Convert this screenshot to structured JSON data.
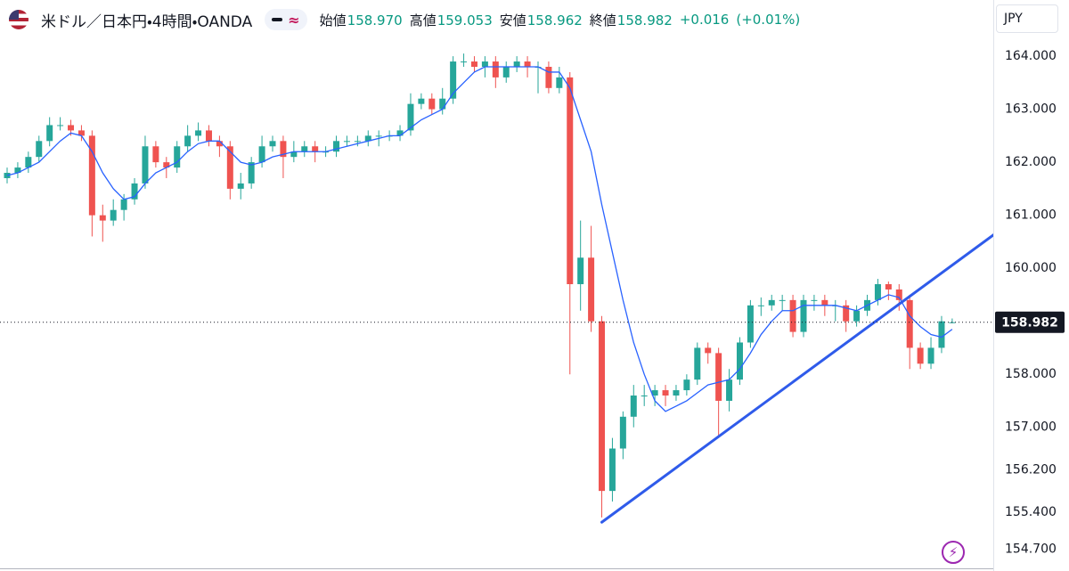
{
  "chart_data": {
    "type": "candlestick",
    "title": "米ドル／日本円・4時間・OANDA",
    "currency": "JPY",
    "ohlc_legend": [
      {
        "label": "始値",
        "value": "158.970"
      },
      {
        "label": "高値",
        "value": "159.053"
      },
      {
        "label": "安値",
        "value": "158.962"
      },
      {
        "label": "終値",
        "value": "158.982"
      }
    ],
    "change": "+0.016",
    "change_percent": "(+0.01%)",
    "last_price": {
      "value": 158.982,
      "label": "158.982"
    },
    "up_color": "#26a69a",
    "down_color": "#ef5350",
    "open": [
      161.7,
      161.8,
      161.9,
      162.1,
      162.4,
      162.7,
      162.7,
      162.6,
      162.5,
      161.0,
      160.9,
      161.1,
      161.3,
      161.6,
      162.3,
      162.0,
      161.9,
      162.3,
      162.5,
      162.6,
      162.4,
      162.3,
      161.5,
      161.6,
      162.0,
      162.3,
      162.4,
      162.1,
      162.2,
      162.3,
      162.2,
      162.2,
      162.4,
      162.4,
      162.4,
      162.5,
      162.5,
      162.5,
      162.6,
      163.1,
      163.2,
      163.0,
      163.2,
      163.9,
      163.9,
      163.8,
      163.9,
      163.6,
      163.8,
      163.9,
      163.8,
      163.8,
      163.4,
      163.6,
      159.7,
      160.2,
      159.0,
      155.8,
      156.6,
      157.2,
      157.6,
      157.6,
      157.7,
      157.6,
      157.7,
      157.9,
      158.5,
      158.4,
      157.5,
      157.9,
      158.6,
      159.3,
      159.3,
      159.4,
      159.4,
      158.8,
      159.4,
      159.4,
      159.3,
      159.3,
      159.0,
      159.2,
      159.4,
      159.7,
      159.6,
      159.4,
      158.5,
      158.2,
      158.5,
      158.97
    ],
    "high": [
      161.9,
      162.0,
      162.2,
      162.5,
      162.85,
      162.85,
      162.8,
      162.7,
      162.6,
      161.2,
      161.3,
      161.4,
      161.7,
      162.5,
      162.4,
      162.1,
      162.4,
      162.7,
      162.75,
      162.7,
      162.5,
      162.4,
      161.8,
      162.1,
      162.5,
      162.5,
      162.5,
      162.4,
      162.4,
      162.4,
      162.3,
      162.5,
      162.5,
      162.5,
      162.6,
      162.6,
      162.6,
      162.7,
      163.3,
      163.3,
      163.3,
      163.4,
      164.0,
      164.05,
      164.0,
      164.0,
      164.0,
      163.9,
      164.0,
      164.0,
      163.9,
      163.9,
      163.8,
      163.7,
      160.9,
      160.8,
      159.1,
      156.8,
      157.3,
      157.8,
      157.8,
      157.8,
      157.8,
      157.8,
      158.0,
      158.6,
      158.6,
      158.5,
      158.1,
      158.7,
      159.4,
      159.45,
      159.5,
      159.5,
      159.5,
      159.5,
      159.5,
      159.5,
      159.4,
      159.4,
      159.3,
      159.5,
      159.8,
      159.75,
      159.7,
      159.5,
      158.6,
      158.7,
      159.1,
      159.053
    ],
    "low": [
      161.6,
      161.7,
      161.8,
      162.0,
      162.3,
      162.6,
      162.5,
      162.4,
      160.6,
      160.5,
      160.8,
      160.9,
      161.2,
      161.5,
      161.9,
      161.7,
      161.8,
      162.2,
      162.4,
      162.3,
      162.1,
      161.3,
      161.3,
      161.5,
      161.9,
      162.2,
      161.7,
      162.0,
      162.1,
      162.0,
      162.1,
      162.1,
      162.3,
      162.3,
      162.3,
      162.3,
      162.4,
      162.4,
      162.5,
      163.0,
      162.9,
      162.9,
      163.1,
      163.8,
      163.7,
      163.6,
      163.4,
      163.5,
      163.7,
      163.6,
      163.3,
      163.3,
      163.3,
      158.0,
      159.2,
      158.8,
      155.3,
      155.6,
      156.4,
      157.0,
      157.4,
      157.4,
      157.4,
      157.5,
      157.6,
      157.8,
      158.2,
      156.8,
      157.3,
      157.8,
      158.5,
      159.1,
      159.2,
      159.2,
      158.7,
      158.7,
      159.2,
      159.1,
      159.0,
      158.8,
      158.9,
      159.1,
      159.3,
      159.4,
      159.2,
      158.1,
      158.1,
      158.1,
      158.4,
      158.962
    ],
    "close": [
      161.8,
      161.9,
      162.1,
      162.4,
      162.7,
      162.7,
      162.6,
      162.5,
      161.0,
      160.9,
      161.1,
      161.3,
      161.6,
      162.3,
      162.0,
      161.9,
      162.3,
      162.5,
      162.6,
      162.4,
      162.3,
      161.5,
      161.6,
      162.0,
      162.3,
      162.4,
      162.1,
      162.2,
      162.3,
      162.2,
      162.2,
      162.4,
      162.4,
      162.4,
      162.5,
      162.5,
      162.5,
      162.6,
      163.1,
      163.2,
      163.0,
      163.2,
      163.9,
      163.9,
      163.8,
      163.9,
      163.6,
      163.8,
      163.9,
      163.8,
      163.8,
      163.4,
      163.6,
      159.7,
      160.2,
      159.0,
      155.8,
      156.6,
      157.2,
      157.6,
      157.6,
      157.7,
      157.6,
      157.7,
      157.9,
      158.5,
      158.4,
      157.5,
      157.9,
      158.6,
      159.3,
      159.3,
      159.4,
      159.4,
      158.8,
      159.4,
      159.4,
      159.3,
      159.3,
      159.0,
      159.2,
      159.4,
      159.7,
      159.6,
      159.4,
      158.5,
      158.2,
      158.5,
      159.0,
      158.982
    ],
    "moving_average": {
      "color": "#2962ff",
      "values": [
        161.75,
        161.8,
        161.9,
        162.0,
        162.2,
        162.4,
        162.55,
        162.5,
        162.2,
        161.8,
        161.5,
        161.3,
        161.35,
        161.6,
        161.8,
        161.9,
        162.0,
        162.2,
        162.35,
        162.4,
        162.4,
        162.2,
        162.0,
        161.95,
        162.0,
        162.1,
        162.15,
        162.2,
        162.2,
        162.2,
        162.2,
        162.25,
        162.3,
        162.35,
        162.4,
        162.45,
        162.5,
        162.5,
        162.65,
        162.8,
        162.9,
        163.0,
        163.3,
        163.5,
        163.7,
        163.8,
        163.8,
        163.8,
        163.8,
        163.8,
        163.8,
        163.7,
        163.7,
        163.4,
        162.8,
        162.2,
        161.2,
        160.3,
        159.4,
        158.6,
        158.0,
        157.5,
        157.3,
        157.4,
        157.5,
        157.65,
        157.8,
        157.85,
        157.9,
        158.1,
        158.4,
        158.75,
        159.0,
        159.2,
        159.2,
        159.3,
        159.3,
        159.3,
        159.3,
        159.25,
        159.2,
        159.3,
        159.4,
        159.5,
        159.45,
        159.1,
        158.9,
        158.75,
        158.7,
        158.85
      ]
    },
    "trendline": {
      "color": "#2f5bea",
      "start": {
        "index": 56,
        "price": 155.21
      },
      "end": {
        "index": 93.1,
        "price": 160.66
      }
    },
    "ylim": [
      154.29,
      165.06
    ],
    "yticks": [
      {
        "value": 164,
        "label": "164.000"
      },
      {
        "value": 163,
        "label": "163.000"
      },
      {
        "value": 162,
        "label": "162.000"
      },
      {
        "value": 161,
        "label": "161.000"
      },
      {
        "value": 160,
        "label": "160.000"
      },
      {
        "value": 158,
        "label": "158.000"
      },
      {
        "value": 157,
        "label": "157.000"
      },
      {
        "value": 156.2,
        "label": "156.200"
      },
      {
        "value": 155.4,
        "label": "155.400"
      },
      {
        "value": 154.7,
        "label": "154.700"
      }
    ]
  }
}
